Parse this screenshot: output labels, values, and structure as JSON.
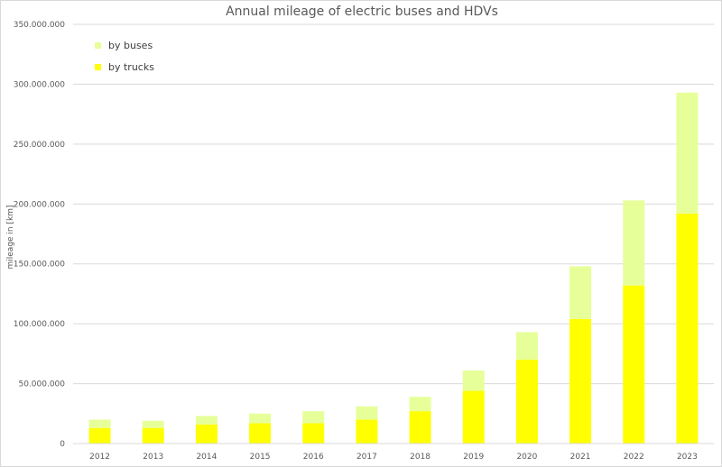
{
  "chart_data": {
    "type": "bar",
    "stacked": true,
    "title": "Annual mileage of electric buses and HDVs",
    "ylabel": "mileage in [km]",
    "xlabel": "",
    "categories": [
      "2012",
      "2013",
      "2014",
      "2015",
      "2016",
      "2017",
      "2018",
      "2019",
      "2020",
      "2021",
      "2022",
      "2023"
    ],
    "series": [
      {
        "name": "by trucks",
        "color": "#ffff00",
        "values": [
          13000000,
          13000000,
          16000000,
          17000000,
          17000000,
          20000000,
          27000000,
          44000000,
          70000000,
          104000000,
          132000000,
          192000000
        ]
      },
      {
        "name": "by buses",
        "color": "#e6ff99",
        "values": [
          7000000,
          6000000,
          7000000,
          8000000,
          10000000,
          11000000,
          12000000,
          17000000,
          23000000,
          44000000,
          71000000,
          101000000
        ]
      }
    ],
    "ylim": [
      0,
      350000000
    ],
    "yticks": [
      "0",
      "50.000.000",
      "100.000.000",
      "150.000.000",
      "200.000.000",
      "250.000.000",
      "300.000.000",
      "350.000.000"
    ],
    "grid": true,
    "legend_position": "top-left",
    "legend_order": [
      "by buses",
      "by trucks"
    ]
  }
}
